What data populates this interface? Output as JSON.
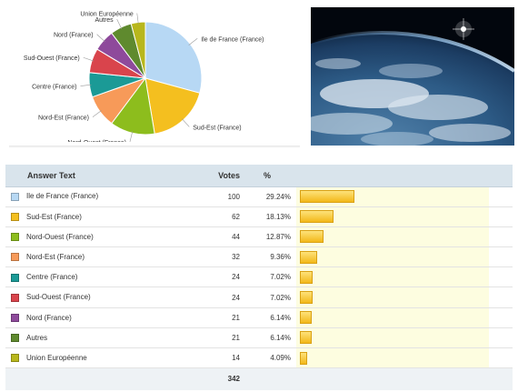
{
  "chart_data": {
    "type": "pie",
    "title": "",
    "slices": [
      {
        "label": "Ile de France (France)",
        "value": 100,
        "percent": "29.24%",
        "color": "#b7d8f4"
      },
      {
        "label": "Sud-Est (France)",
        "value": 62,
        "percent": "18.13%",
        "color": "#f4bf1f"
      },
      {
        "label": "Nord-Ouest (France)",
        "value": 44,
        "percent": "12.87%",
        "color": "#8dbd1d"
      },
      {
        "label": "Nord-Est (France)",
        "value": 32,
        "percent": "9.36%",
        "color": "#f79a59"
      },
      {
        "label": "Centre (France)",
        "value": 24,
        "percent": "7.02%",
        "color": "#1b9a96"
      },
      {
        "label": "Sud-Ouest (France)",
        "value": 24,
        "percent": "7.02%",
        "color": "#d9444c"
      },
      {
        "label": "Nord (France)",
        "value": 21,
        "percent": "6.14%",
        "color": "#8e4a9b"
      },
      {
        "label": "Autres",
        "value": 21,
        "percent": "6.14%",
        "color": "#5f8a2e"
      },
      {
        "label": "Union Européenne",
        "value": 14,
        "percent": "4.09%",
        "color": "#b8b71c"
      }
    ]
  },
  "table": {
    "headers": {
      "answer": "Answer Text",
      "votes": "Votes",
      "percent": "%"
    },
    "total": "342"
  }
}
